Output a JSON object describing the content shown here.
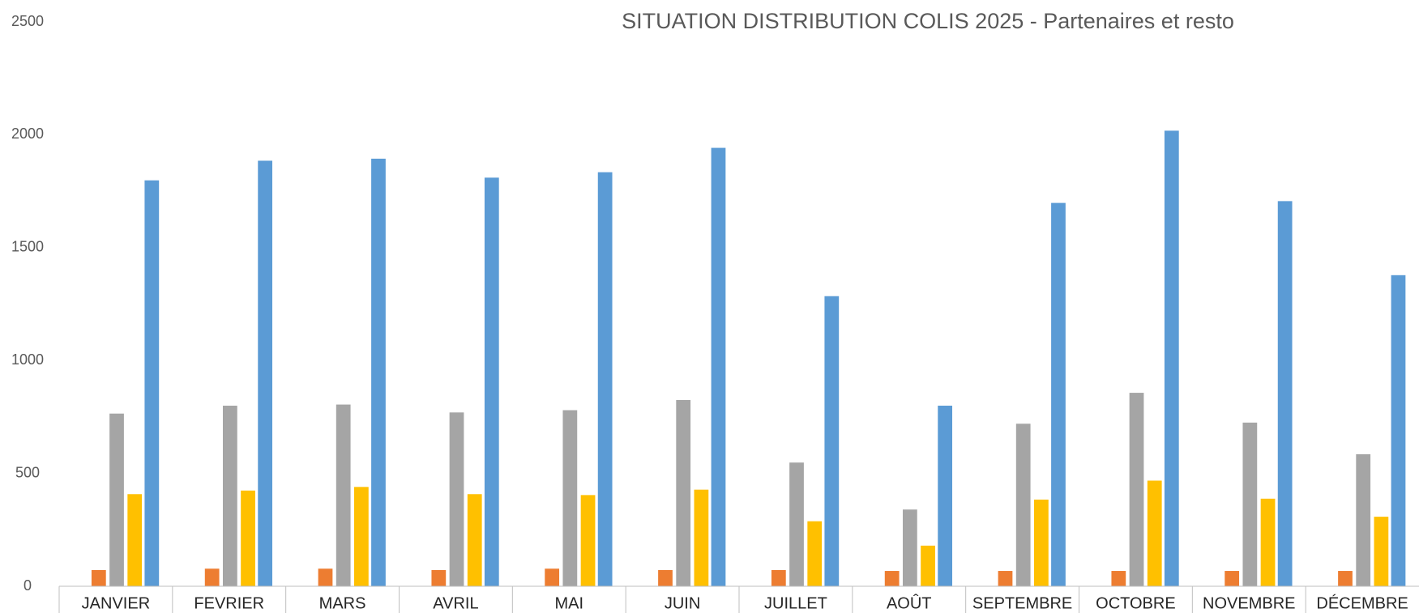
{
  "chart_data": {
    "type": "bar",
    "title": "SITUATION DISTRIBUTION COLIS 2025 - Partenaires et resto",
    "categories": [
      "JANVIER",
      "FEVRIER",
      "MARS",
      "AVRIL",
      "MAI",
      "JUIN",
      "JUILLET",
      "AOÛT",
      "SEPTEMBRE",
      "OCTOBRE",
      "NOVEMBRE",
      "DÉCEMBRE"
    ],
    "series": [
      {
        "color": "#ed7d31",
        "values": [
          72,
          78,
          78,
          72,
          78,
          72,
          72,
          68,
          68,
          68,
          68,
          68
        ]
      },
      {
        "color": "#a5a5a5",
        "values": [
          765,
          800,
          805,
          770,
          780,
          825,
          548,
          340,
          720,
          857,
          725,
          585
        ]
      },
      {
        "color": "#ffc000",
        "values": [
          408,
          424,
          440,
          408,
          404,
          428,
          288,
          180,
          384,
          468,
          388,
          308
        ]
      },
      {
        "color": "#5b9bd5",
        "values": [
          1798,
          1885,
          1894,
          1810,
          1834,
          1942,
          1285,
          800,
          1698,
          2018,
          1706,
          1378
        ]
      }
    ],
    "ylim": [
      0,
      2500
    ],
    "yticks": [
      0,
      500,
      1000,
      1500,
      2000,
      2500
    ],
    "grid": false
  }
}
